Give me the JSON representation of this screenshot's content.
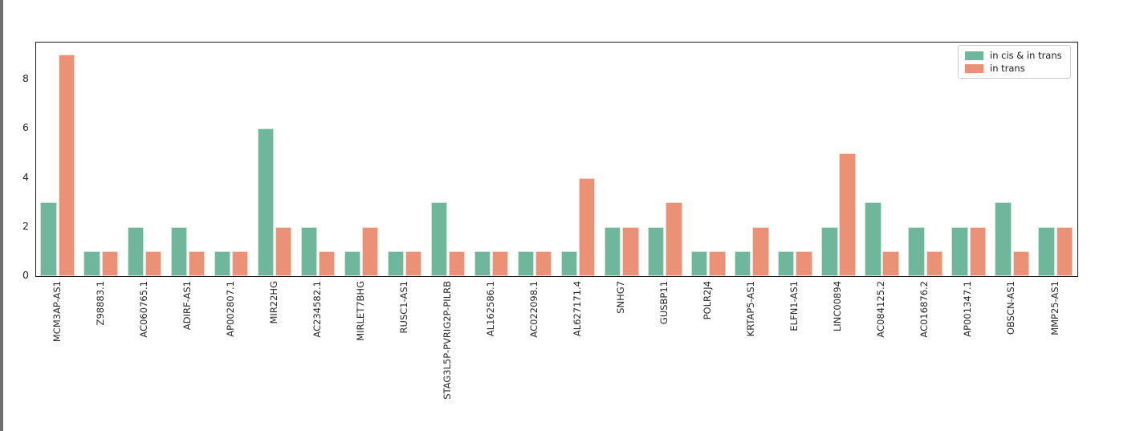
{
  "figure": {
    "background_color": "#ffffff",
    "spine_color": "#1a1a1a",
    "tick_label_color": "#262626",
    "window_edge_color": "#6e6e6e"
  },
  "chart_data": {
    "type": "bar",
    "title": "",
    "xlabel": "",
    "ylabel": "",
    "grid": false,
    "legend_position": "upper right",
    "x_tick_rotation": 90,
    "ylim": [
      0,
      9.5
    ],
    "yticks": [
      0,
      2,
      4,
      6,
      8
    ],
    "categories": [
      "MCM3AP-AS1",
      "Z98883.1",
      "AC060765.1",
      "ADIRF-AS1",
      "AP002807.1",
      "MIR22HG",
      "AC234582.1",
      "MIRLET7BHG",
      "RUSC1-AS1",
      "STAG3L5P-PVRIG2P-PILRB",
      "AL162586.1",
      "AC022098.1",
      "AL627171.4",
      "SNHG7",
      "GUSBP11",
      "POLR2J4",
      "KRTAP5-AS1",
      "ELFN1-AS1",
      "LINC00894",
      "AC084125.2",
      "AC016876.2",
      "AP001347.1",
      "OBSCN-AS1",
      "MMP25-AS1"
    ],
    "series": [
      {
        "name": "in cis & in trans",
        "color": "#6fb79c",
        "values": [
          3,
          1,
          2,
          2,
          1,
          6,
          2,
          1,
          1,
          3,
          1,
          1,
          1,
          2,
          2,
          1,
          1,
          1,
          2,
          3,
          2,
          2,
          3,
          2
        ]
      },
      {
        "name": "in trans",
        "color": "#eb9176",
        "values": [
          9,
          1,
          1,
          1,
          1,
          2,
          1,
          2,
          1,
          1,
          1,
          1,
          4,
          2,
          3,
          1,
          2,
          1,
          5,
          1,
          1,
          2,
          1,
          2
        ]
      }
    ]
  }
}
